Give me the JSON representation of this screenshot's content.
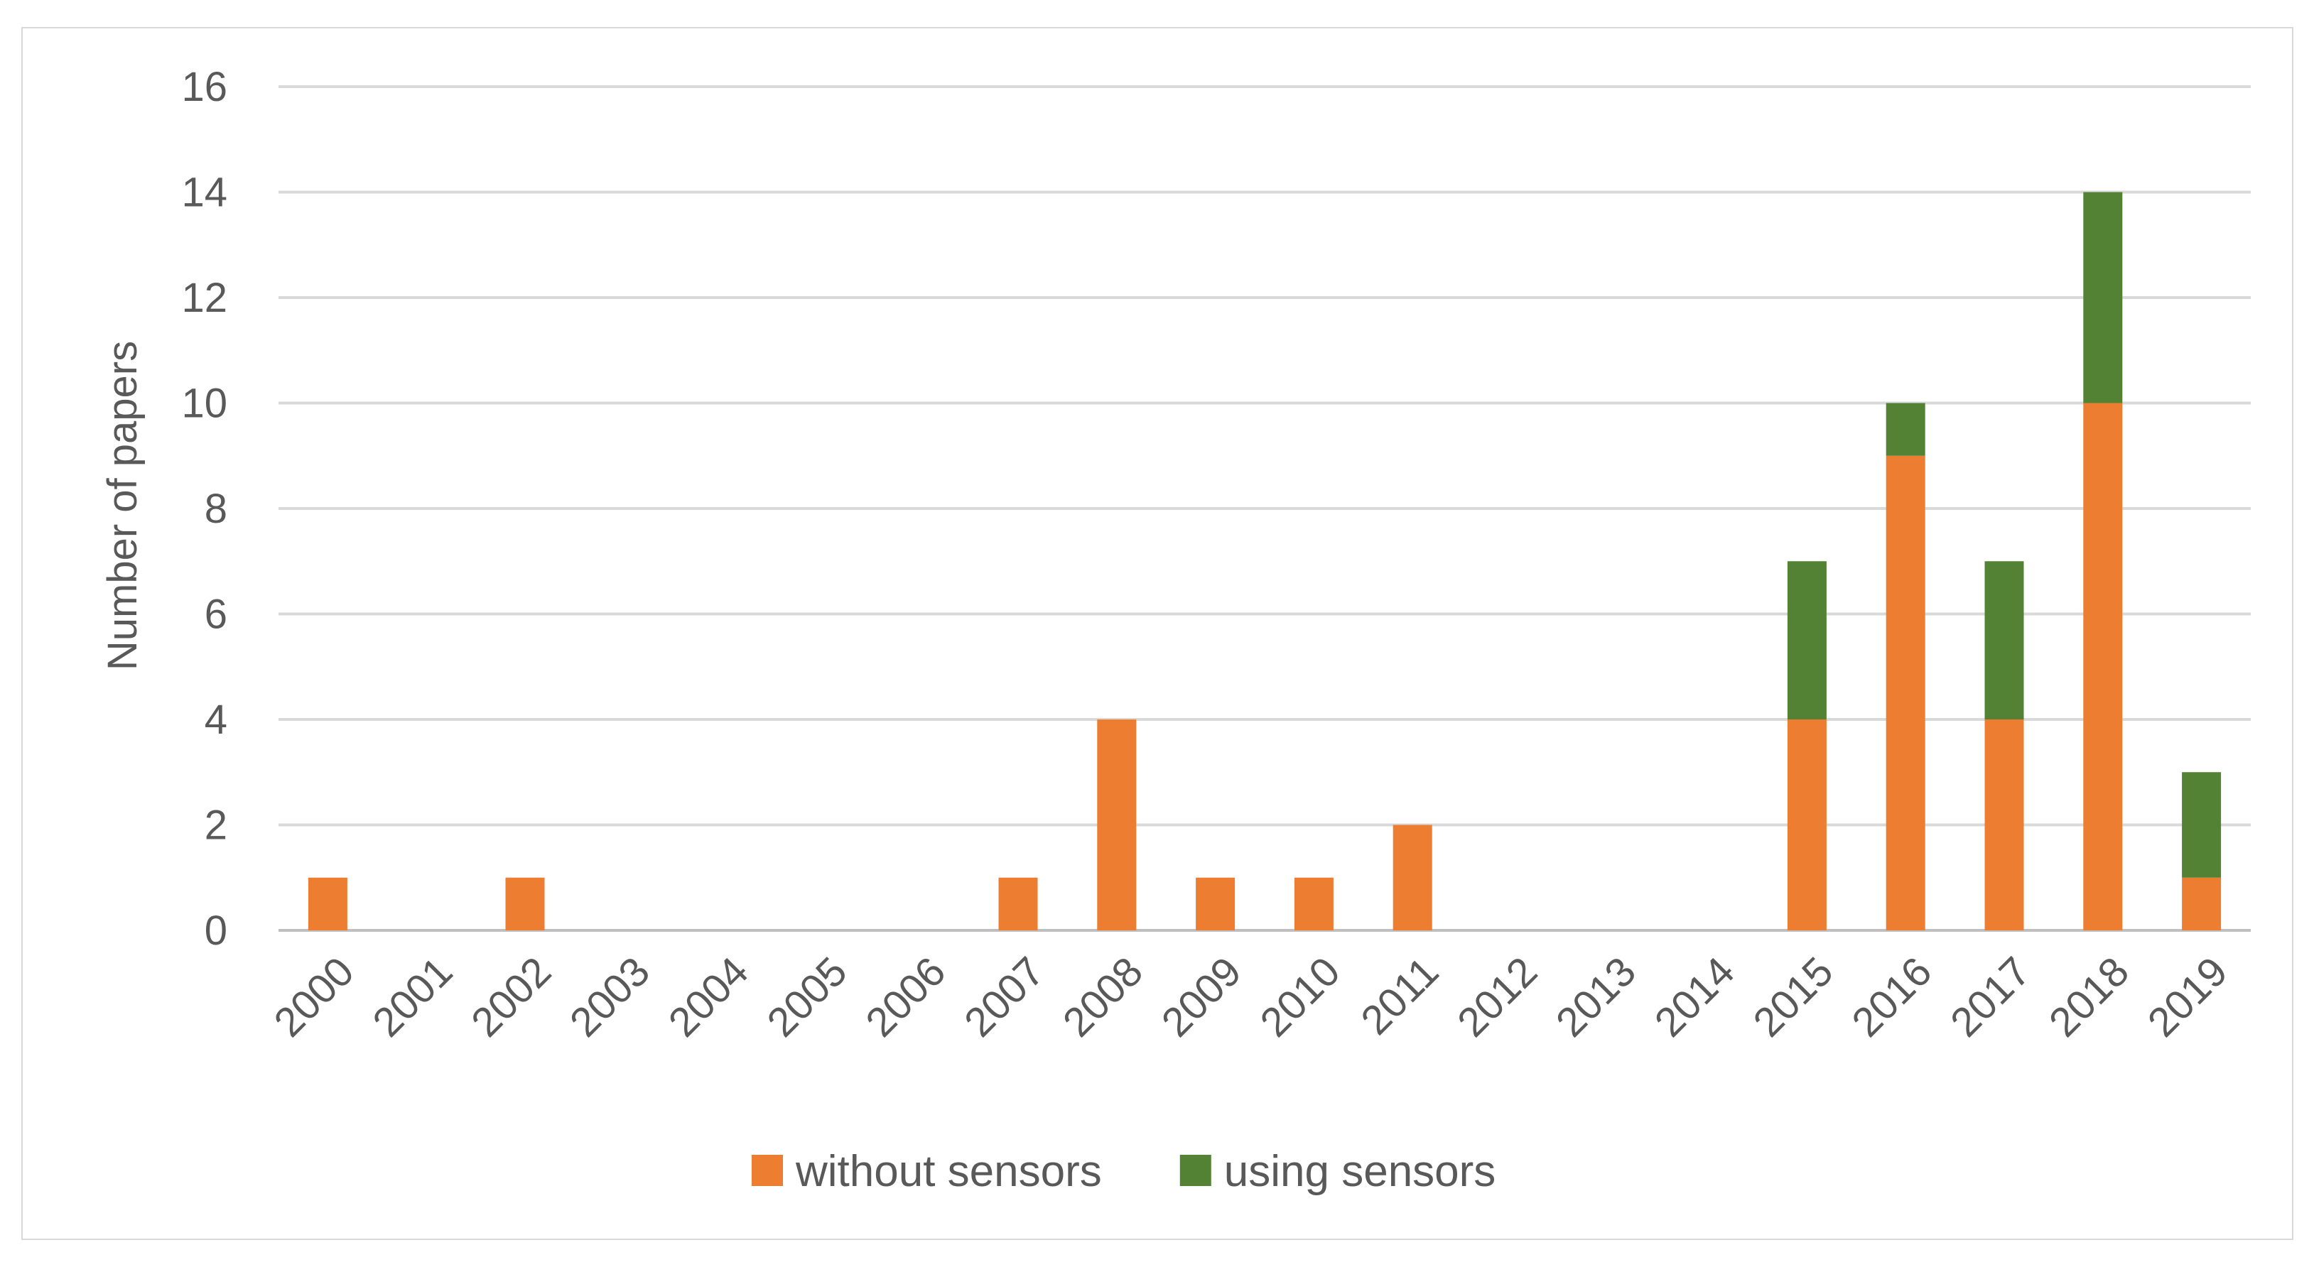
{
  "chart_data": {
    "type": "bar",
    "stacked": true,
    "title": "",
    "xlabel": "",
    "ylabel": "Number of papers",
    "ylim": [
      0,
      16
    ],
    "yticks": [
      0,
      2,
      4,
      6,
      8,
      10,
      12,
      14,
      16
    ],
    "grid": true,
    "legend_position": "bottom",
    "categories": [
      "2000",
      "2001",
      "2002",
      "2003",
      "2004",
      "2005",
      "2006",
      "2007",
      "2008",
      "2009",
      "2010",
      "2011",
      "2012",
      "2013",
      "2014",
      "2015",
      "2016",
      "2017",
      "2018",
      "2019"
    ],
    "series": [
      {
        "name": "without sensors",
        "color": "#ED7D31",
        "values": [
          1,
          0,
          1,
          0,
          0,
          0,
          0,
          1,
          4,
          1,
          1,
          2,
          0,
          0,
          0,
          4,
          9,
          4,
          10,
          1
        ]
      },
      {
        "name": "using sensors",
        "color": "#548235",
        "values": [
          0,
          0,
          0,
          0,
          0,
          0,
          0,
          0,
          0,
          0,
          0,
          0,
          0,
          0,
          0,
          3,
          1,
          3,
          4,
          2
        ]
      }
    ]
  }
}
